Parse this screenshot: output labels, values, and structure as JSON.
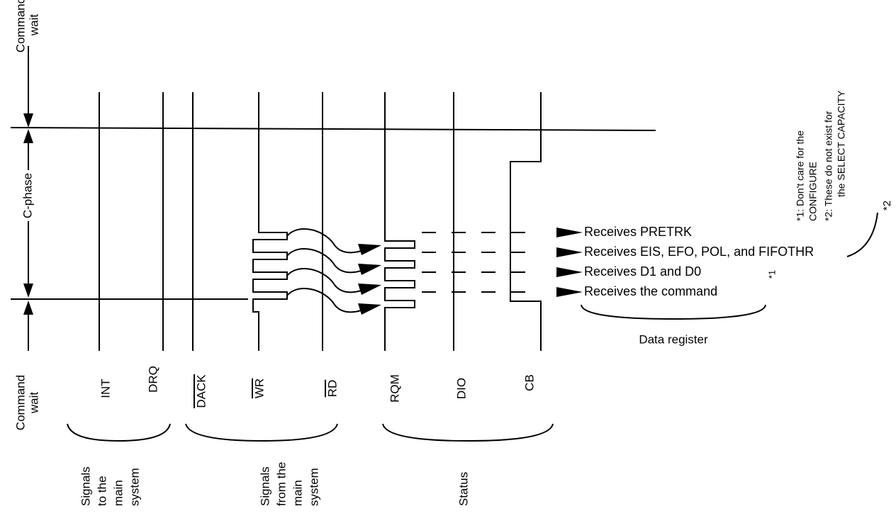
{
  "left_labels": {
    "top": [
      "Command",
      "wait"
    ],
    "phase": "C-phase",
    "bottom": [
      "Command",
      "wait"
    ]
  },
  "signals": [
    {
      "name": "INT",
      "overline": false
    },
    {
      "name": "DRQ",
      "overline": false
    },
    {
      "name": "DACK",
      "overline": true
    },
    {
      "name": "WR",
      "overline": true
    },
    {
      "name": "RD",
      "overline": true
    },
    {
      "name": "RQM",
      "overline": false
    },
    {
      "name": "DIO",
      "overline": false
    },
    {
      "name": "CB",
      "overline": false
    }
  ],
  "groups": [
    [
      "Signals",
      "to the",
      "main",
      "system"
    ],
    [
      "Signals",
      "from the",
      "main",
      "system"
    ],
    [
      "Status"
    ]
  ],
  "data_register": {
    "entries": [
      "Receives PRETRK",
      "Receives EIS, EFO, POL, and FIFOTHR",
      "Receives D1 and D0",
      "Receives the command"
    ],
    "marker": "*1",
    "label": "Data register"
  },
  "notes": [
    "*1: Don't care for the",
    "CONFIGURE",
    "*2: These do not exist for",
    "the SELECT CAPACITY"
  ],
  "note_marker": "*2"
}
